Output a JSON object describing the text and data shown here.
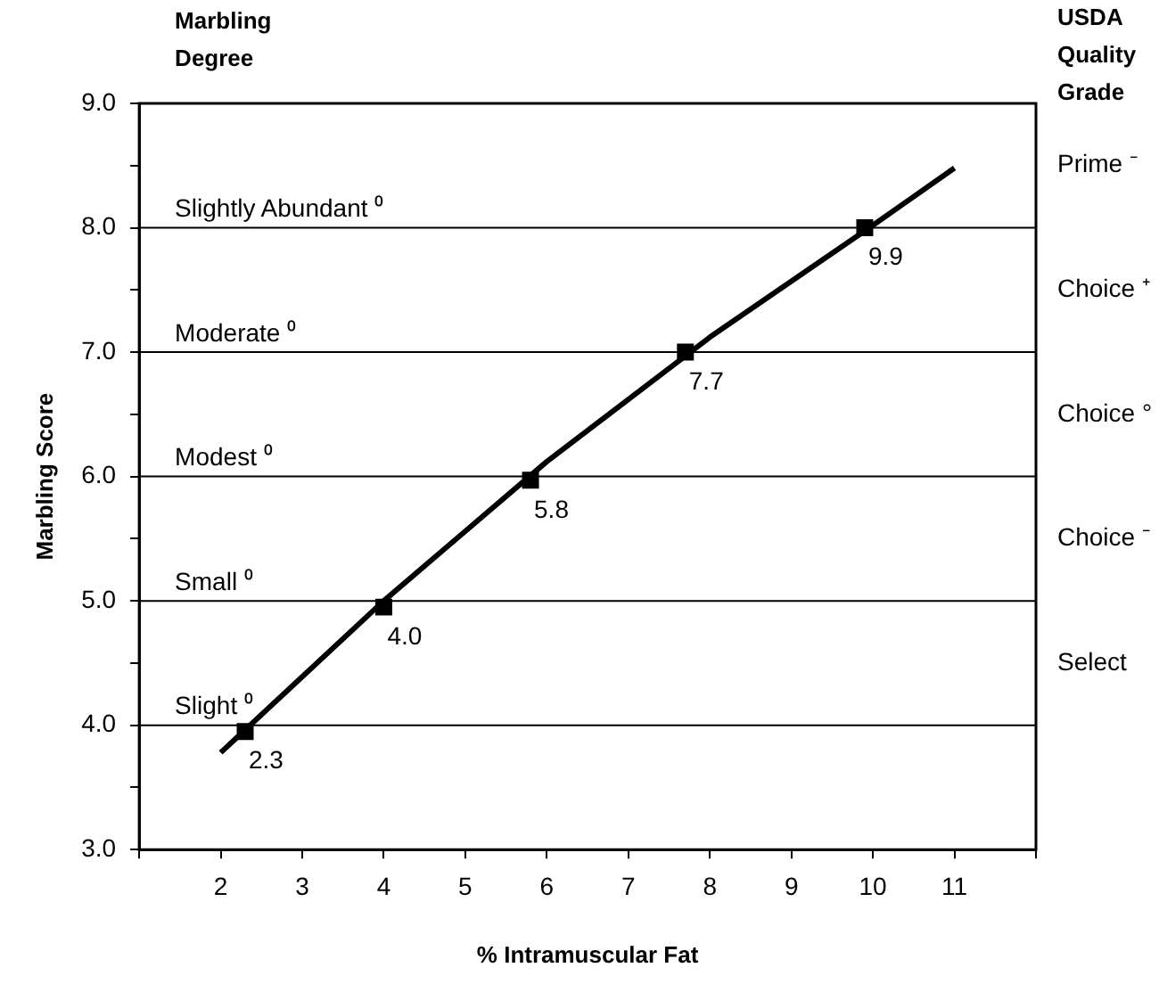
{
  "chart_data": {
    "type": "scatter",
    "xlabel": "% Intramuscular Fat",
    "ylabel": "Marbling Score",
    "y2label": "USDA Quality Grade",
    "annotations": [
      "Marbling Degree",
      {
        "text": "2.3",
        "x": 2.3,
        "y": 3.95
      },
      {
        "text": "4.0",
        "x": 4.0,
        "y": 4.95
      },
      {
        "text": "5.8",
        "x": 5.8,
        "y": 5.97
      },
      {
        "text": "7.7",
        "x": 7.7,
        "y": 7.0
      },
      {
        "text": "9.9",
        "x": 9.9,
        "y": 8.0
      },
      "Prime ⁻",
      "Choice ⁺",
      "Choice °",
      "Choice ⁻",
      "Select"
    ],
    "xlim": [
      1,
      12
    ],
    "xticks": [
      {
        "value": 1,
        "label": null
      },
      2,
      3,
      4,
      5,
      6,
      7,
      8,
      9,
      10,
      11,
      {
        "value": 12,
        "label": null
      }
    ],
    "ylim": [
      3,
      9
    ],
    "yticks": [
      {
        "value": 3,
        "label": "3.0"
      },
      {
        "value": 3.5,
        "label": null
      },
      {
        "value": 4,
        "label": "4.0"
      },
      {
        "value": 4.5,
        "label": null
      },
      {
        "value": 5,
        "label": "5.0"
      },
      {
        "value": 5.5,
        "label": null
      },
      {
        "value": 6,
        "label": "6.0"
      },
      {
        "value": 6.5,
        "label": null
      },
      {
        "value": 7,
        "label": "7.0"
      },
      {
        "value": 7.5,
        "label": null
      },
      {
        "value": 8,
        "label": "8.0"
      },
      {
        "value": 8.5,
        "label": null
      },
      {
        "value": 9,
        "label": "9.0"
      }
    ],
    "grid": false,
    "legend": false,
    "series": [
      {
        "color": "#000000",
        "marker": "square",
        "x": [
          2.3,
          4.0,
          5.8,
          7.7,
          9.9
        ],
        "values": [
          3.95,
          4.95,
          5.97,
          7.0,
          8.0
        ]
      },
      {
        "type": "line",
        "color": "#000000",
        "marker": "none",
        "x": [
          2,
          4,
          6,
          8,
          10,
          11
        ],
        "values": [
          3.78,
          5.0,
          6.12,
          7.12,
          8.02,
          8.48
        ]
      }
    ],
    "ref_lines": [
      {
        "axis": "y",
        "value": 4,
        "label": "Slight ⁰",
        "color": "#000000"
      },
      {
        "axis": "y",
        "value": 5,
        "label": "Small ⁰",
        "color": "#000000"
      },
      {
        "axis": "y",
        "value": 6,
        "label": "Modest ⁰",
        "color": "#000000"
      },
      {
        "axis": "y",
        "value": 7,
        "label": "Moderate ⁰",
        "color": "#000000"
      },
      {
        "axis": "y",
        "value": 8,
        "label": "Slightly Abundant ⁰",
        "color": "#000000"
      }
    ]
  }
}
